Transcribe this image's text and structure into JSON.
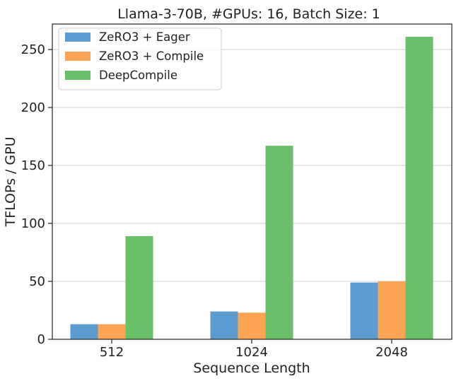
{
  "chart_data": {
    "type": "bar",
    "title": "Llama-3-70B, #GPUs: 16, Batch Size: 1",
    "xlabel": "Sequence Length",
    "ylabel": "TFLOPs / GPU",
    "categories": [
      "512",
      "1024",
      "2048"
    ],
    "series": [
      {
        "name": "ZeRO3 + Eager",
        "color": "#5b9bcf",
        "values": [
          13,
          24,
          49
        ]
      },
      {
        "name": "ZeRO3 + Compile",
        "color": "#fca453",
        "values": [
          13,
          23,
          50
        ]
      },
      {
        "name": "DeepCompile",
        "color": "#6abf69",
        "values": [
          89,
          167,
          261
        ]
      }
    ],
    "yticks": [
      0,
      50,
      100,
      150,
      200,
      250
    ],
    "ylim": [
      0,
      272
    ],
    "grid": true,
    "legend": "top-left"
  }
}
